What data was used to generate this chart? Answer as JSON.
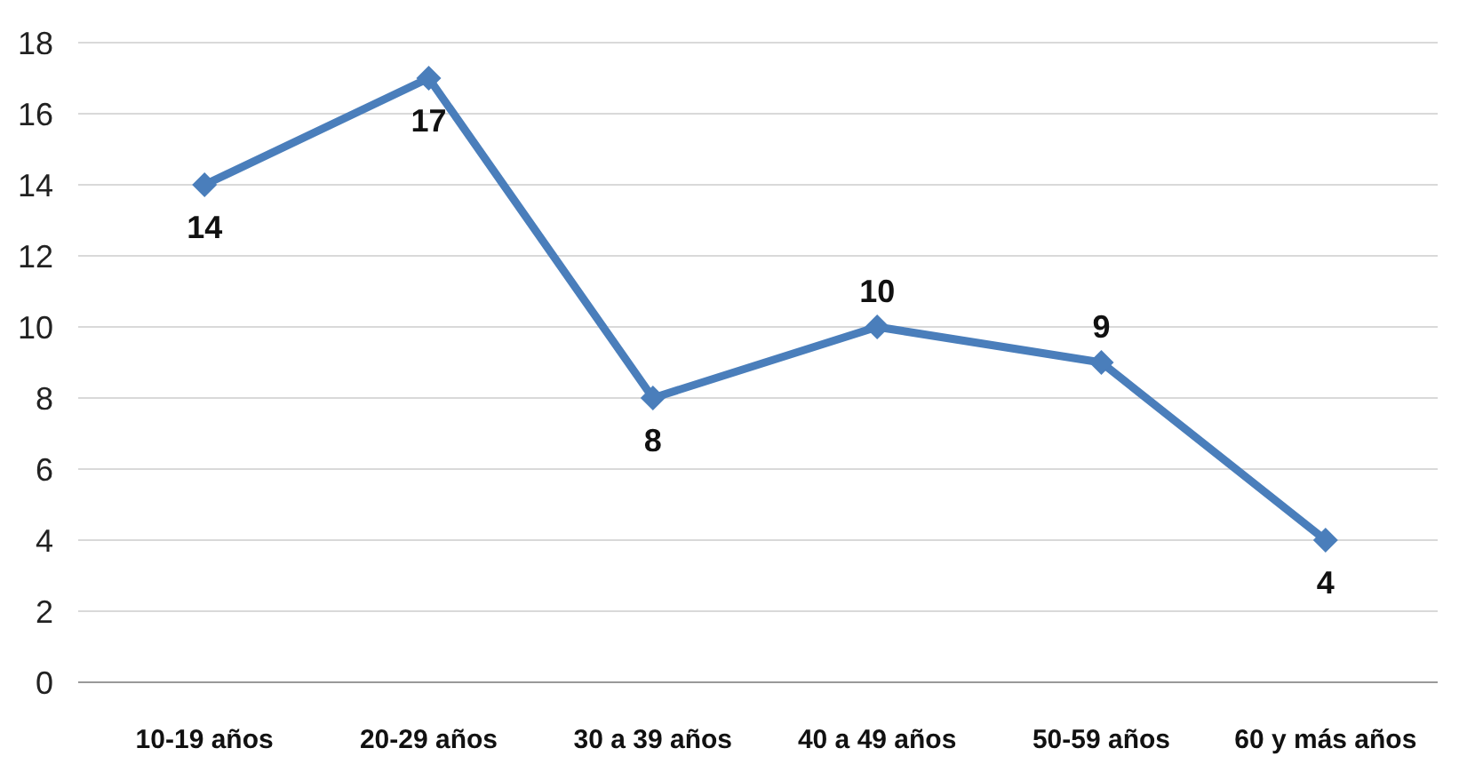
{
  "chart_data": {
    "type": "line",
    "categories": [
      "10-19 años",
      "20-29 años",
      "30 a 39 años",
      "40 a 49 años",
      "50-59 años",
      "60 y más años"
    ],
    "series": [
      {
        "color": "#4a7ebb",
        "values": [
          14,
          17,
          8,
          10,
          9,
          4
        ]
      }
    ],
    "ylim": [
      0,
      18
    ],
    "yticks": [
      0,
      2,
      4,
      6,
      8,
      10,
      12,
      14,
      16,
      18
    ],
    "grid": "y",
    "marker": "diamond",
    "line_style": "solid",
    "data_labels": true
  }
}
